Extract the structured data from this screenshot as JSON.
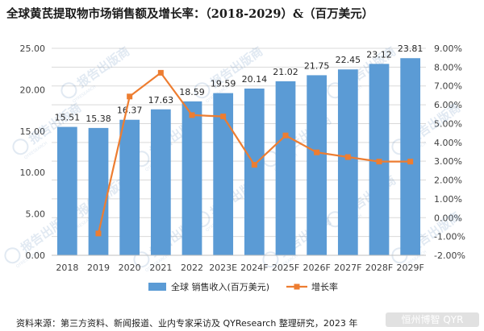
{
  "title": "全球黄芪提取物市场销售额及增长率：（2018-2029）&（百万美元）",
  "source": "资料来源：第三方资料、新闻报道、业内专家采访及 QYResearch 整理研究，2023 年",
  "corner_watermark": "恒州博智 QYR",
  "watermark_logo": {
    "brand": "QYRESEARCH",
    "text": "报告出版商"
  },
  "colors": {
    "bar": "#5b9bd5",
    "line": "#ed7d31",
    "grid": "#d9d9d9",
    "axis_text": "#404040"
  },
  "chart_data": {
    "type": "bar+line",
    "categories": [
      "2018",
      "2019",
      "2020",
      "2021",
      "2022",
      "2023E",
      "2024F",
      "2025F",
      "2026F",
      "2027F",
      "2028F",
      "2029F"
    ],
    "series": [
      {
        "name": "全球 销售收入(百万美元)",
        "type": "bar",
        "axis": "left",
        "values": [
          15.51,
          15.38,
          16.37,
          17.63,
          18.59,
          19.59,
          20.14,
          21.02,
          21.75,
          22.45,
          23.12,
          23.81
        ],
        "labels": [
          "15.51",
          "15.38",
          "16.37",
          "17.63",
          "18.59",
          "19.59",
          "20.14",
          "21.02",
          "21.75",
          "22.45",
          "23.12",
          "23.81"
        ]
      },
      {
        "name": "增长率",
        "type": "line",
        "axis": "right",
        "values": [
          null,
          -0.84,
          6.44,
          7.7,
          5.45,
          5.38,
          2.81,
          4.37,
          3.47,
          3.22,
          2.98,
          2.98
        ]
      }
    ],
    "y_left": {
      "min": 0,
      "max": 25,
      "step": 5,
      "ticks": [
        "0.00",
        "5.00",
        "10.00",
        "15.00",
        "20.00",
        "25.00"
      ]
    },
    "y_right": {
      "min": -2,
      "max": 9,
      "step": 1,
      "ticks": [
        "-2.00%",
        "-1.00%",
        "0.00%",
        "1.00%",
        "2.00%",
        "3.00%",
        "4.00%",
        "5.00%",
        "6.00%",
        "7.00%",
        "8.00%",
        "9.00%"
      ]
    },
    "legend_position": "bottom",
    "grid": true
  }
}
